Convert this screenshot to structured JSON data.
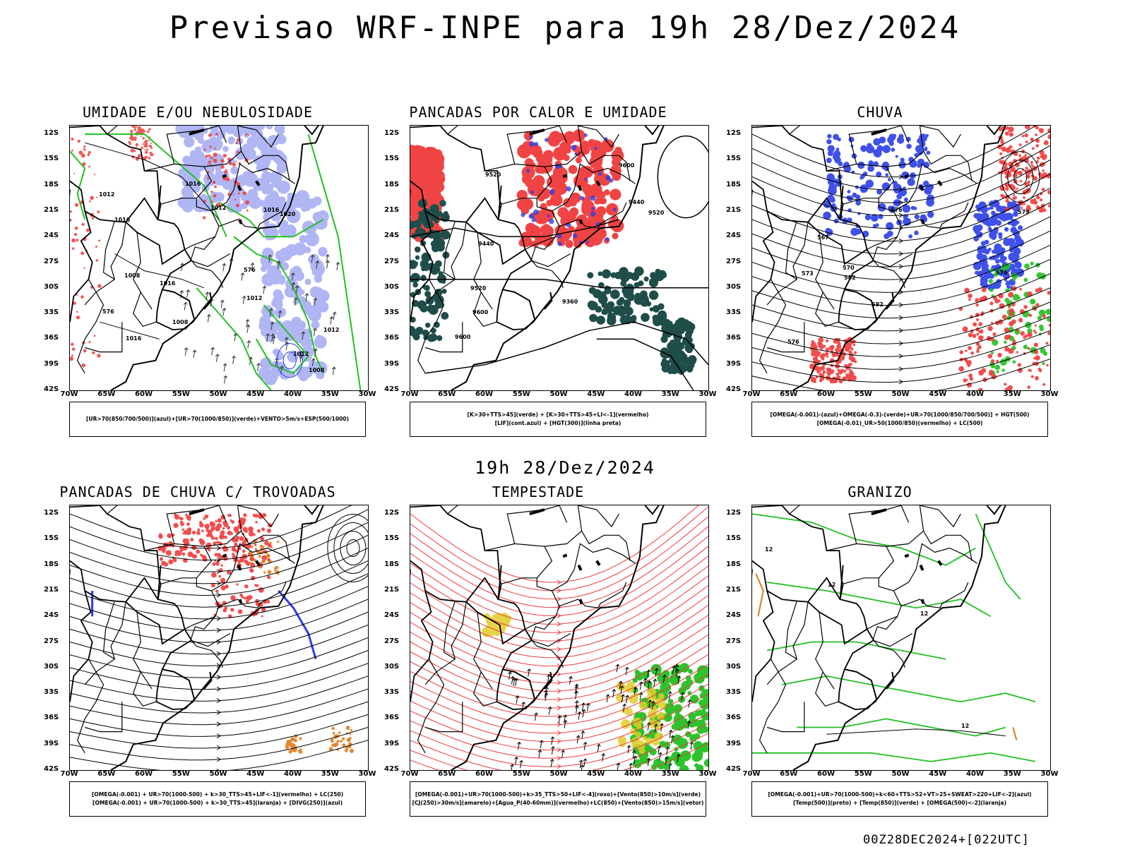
{
  "title": "Previsao WRF-INPE  para 19h 28/Dez/2024",
  "subtitle": "19h 28/Dez/2024",
  "footer": "00Z28DEC2024+[022UTC]",
  "axes": {
    "lat": [
      "12S",
      "15S",
      "18S",
      "21S",
      "24S",
      "27S",
      "30S",
      "33S",
      "36S",
      "39S",
      "42S"
    ],
    "lon": [
      "70W",
      "65W",
      "60W",
      "55W",
      "50W",
      "45W",
      "40W",
      "35W",
      "30W"
    ]
  },
  "colors": {
    "red": "#f03a3a",
    "blue": "#2b3fe8",
    "green": "#22c022",
    "dkgreen": "#1e4d4a",
    "orange": "#e07a1a",
    "yellow": "#e3cc2a",
    "lav": "#8f98f0"
  },
  "panels": [
    {
      "title": "UMIDADE E/OU NEBULOSIDADE",
      "legend": [
        "[UR>70(850/700/500)](azul)+[UR>70(1000/850)](verde)+VENTO>5m/s+ESP(500/1000)"
      ],
      "labels": [
        "1008",
        "1008",
        "1012",
        "1012",
        "1012",
        "1016",
        "1016",
        "1016",
        "1020",
        "1012",
        "1016",
        "1012",
        "1008",
        "1016",
        "576",
        "576"
      ]
    },
    {
      "title": "PANCADAS POR CALOR E UMIDADE",
      "legend": [
        "[K>30+TTS>45](verde) + [K>30+TTS>45+LI<-1](vermelho)",
        "[LIF](cont.azul) + [HGT(300)](linha preta)"
      ],
      "labels": [
        "9600",
        "9600",
        "9520",
        "9440",
        "9360",
        "9440",
        "9520",
        "9600",
        "9520"
      ]
    },
    {
      "title": "CHUVA",
      "legend": [
        "[OMEGA(-0.001)-(azul)+OMEGA(-0.3)-(verde)+UR>70(1000/850/700/500)] + HGT(500)",
        "[OMEGA(-0.01)_UR>50(1000/850)(vermelho) + LC(500)"
      ],
      "labels": [
        "582",
        "582",
        "576",
        "576",
        "573",
        "570",
        "567",
        "576",
        "579"
      ]
    },
    {
      "title": "PANCADAS DE CHUVA C/ TROVOADAS",
      "legend": [
        "[OMEGA(-0.001) + UR>70(1000-500) + k>30_TTS>45+LIF<-1](vermelho) + LC(250)",
        "[OMEGA(-0.001) + UR>70(1000-500) + k>30_TTS>45](laranja) + [DIVG(250)](azul)"
      ],
      "labels": []
    },
    {
      "title": "TEMPESTADE",
      "legend": [
        "[OMEGA(-0.001)+UR>70(1000-500)+k>35_TTS>50+LIF<-4](roxo)+[Vento(850)>10m/s](verde)",
        "[CJ(250)>30m/s](amarelo)+[Agua_P(40-60mm)](vermelho)+LC(850)+[Vento(850)>15m/s](vetor)"
      ],
      "labels": []
    },
    {
      "title": "GRANIZO",
      "legend": [
        "[OMEGA(-0.001)+UR>70(1000-500)+k<60+TTS>52+VT>25+SWEAT>220+LIF<-2](azul)",
        "[Temp(500)](preto) + [Temp(850)](verde) + [OMEGA(500)<-2](laranja)"
      ],
      "labels": [
        "12",
        "12",
        "12",
        "12"
      ]
    }
  ]
}
